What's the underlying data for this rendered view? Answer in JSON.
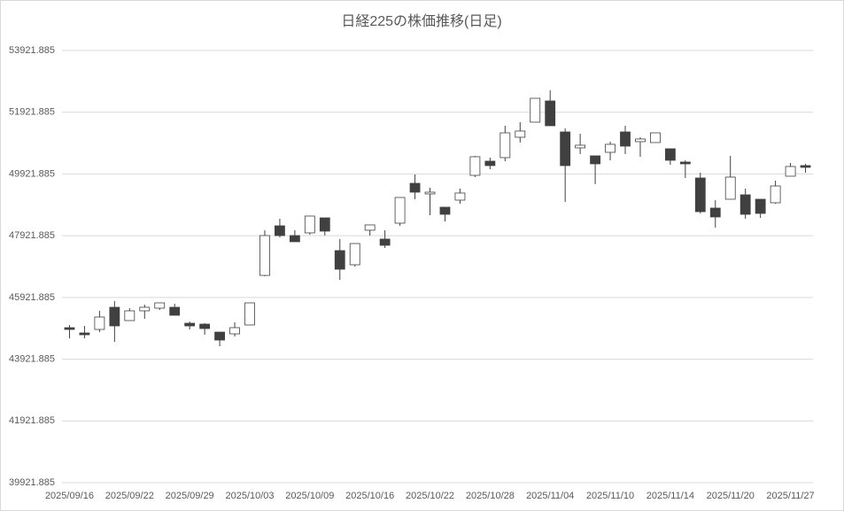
{
  "chart_data": {
    "type": "candlestick",
    "title": "日経225の株価推移(日足)",
    "categories": [
      "2025/09/16",
      null,
      null,
      null,
      "2025/09/22",
      null,
      null,
      null,
      "2025/09/29",
      null,
      null,
      null,
      "2025/10/03",
      null,
      null,
      null,
      "2025/10/09",
      null,
      null,
      null,
      "2025/10/16",
      null,
      null,
      null,
      "2025/10/22",
      null,
      null,
      null,
      "2025/10/28",
      null,
      null,
      null,
      "2025/11/04",
      null,
      null,
      null,
      "2025/11/10",
      null,
      null,
      null,
      "2025/11/14",
      null,
      null,
      null,
      "2025/11/20",
      null,
      null,
      null,
      "2025/11/27",
      null
    ],
    "open": [
      44943,
      44771,
      44885,
      45603,
      45172,
      45488,
      45574,
      45603,
      45086,
      45057,
      44799,
      44742,
      45029,
      46635,
      48242,
      47926,
      48013,
      48500,
      47439,
      46980,
      48099,
      47812,
      48328,
      49619,
      49275,
      48845,
      49074,
      49877,
      50336,
      50451,
      51111,
      51599,
      52287,
      51283,
      50767,
      50509,
      50623,
      51283,
      50968,
      50939,
      50738,
      50308,
      49791,
      48816,
      49103,
      49246,
      49103,
      48988,
      49849,
      50193
    ],
    "high": [
      45029,
      45000,
      45488,
      45803,
      45574,
      45689,
      45746,
      45717,
      45144,
      45086,
      44799,
      45115,
      45746,
      48099,
      48472,
      48099,
      48558,
      48500,
      47812,
      47668,
      48271,
      48099,
      49160,
      49906,
      49476,
      48845,
      49447,
      50509,
      50451,
      51484,
      51599,
      52373,
      52632,
      51398,
      51226,
      50509,
      50968,
      51484,
      51111,
      51254,
      50738,
      50365,
      49963,
      49074,
      50509,
      49447,
      49103,
      49705,
      50279,
      50250
    ],
    "low": [
      44598,
      44598,
      44799,
      44484,
      45172,
      45230,
      45516,
      45344,
      44885,
      44713,
      44340,
      44656,
      45029,
      46607,
      47869,
      47726,
      47955,
      47926,
      46492,
      46922,
      47926,
      47525,
      48242,
      49103,
      48586,
      48385,
      48959,
      49820,
      50078,
      50336,
      50939,
      51599,
      51484,
      49017,
      50566,
      49590,
      50365,
      50566,
      50480,
      50939,
      50222,
      49791,
      48644,
      48185,
      49103,
      48472,
      48500,
      48959,
      49849,
      49963
    ],
    "close": [
      44885,
      44713,
      45287,
      45000,
      45488,
      45603,
      45746,
      45344,
      45000,
      44914,
      44541,
      44943,
      45746,
      47926,
      47926,
      47726,
      48558,
      48070,
      46836,
      47668,
      48271,
      47611,
      49160,
      49332,
      49332,
      48615,
      49304,
      50480,
      50193,
      51254,
      51312,
      52373,
      51484,
      50193,
      50853,
      50250,
      50882,
      50824,
      51054,
      51254,
      50365,
      50250,
      48701,
      48529,
      49820,
      48615,
      48644,
      49533,
      50164,
      50136
    ],
    "up_color": "#ffffff",
    "down_color": "#404040",
    "ylim": [
      39921.885,
      53921.885
    ],
    "yticks": [
      39921.885,
      41921.885,
      43921.885,
      45921.885,
      47921.885,
      49921.885,
      51921.885,
      53921.885
    ],
    "grid": true
  }
}
